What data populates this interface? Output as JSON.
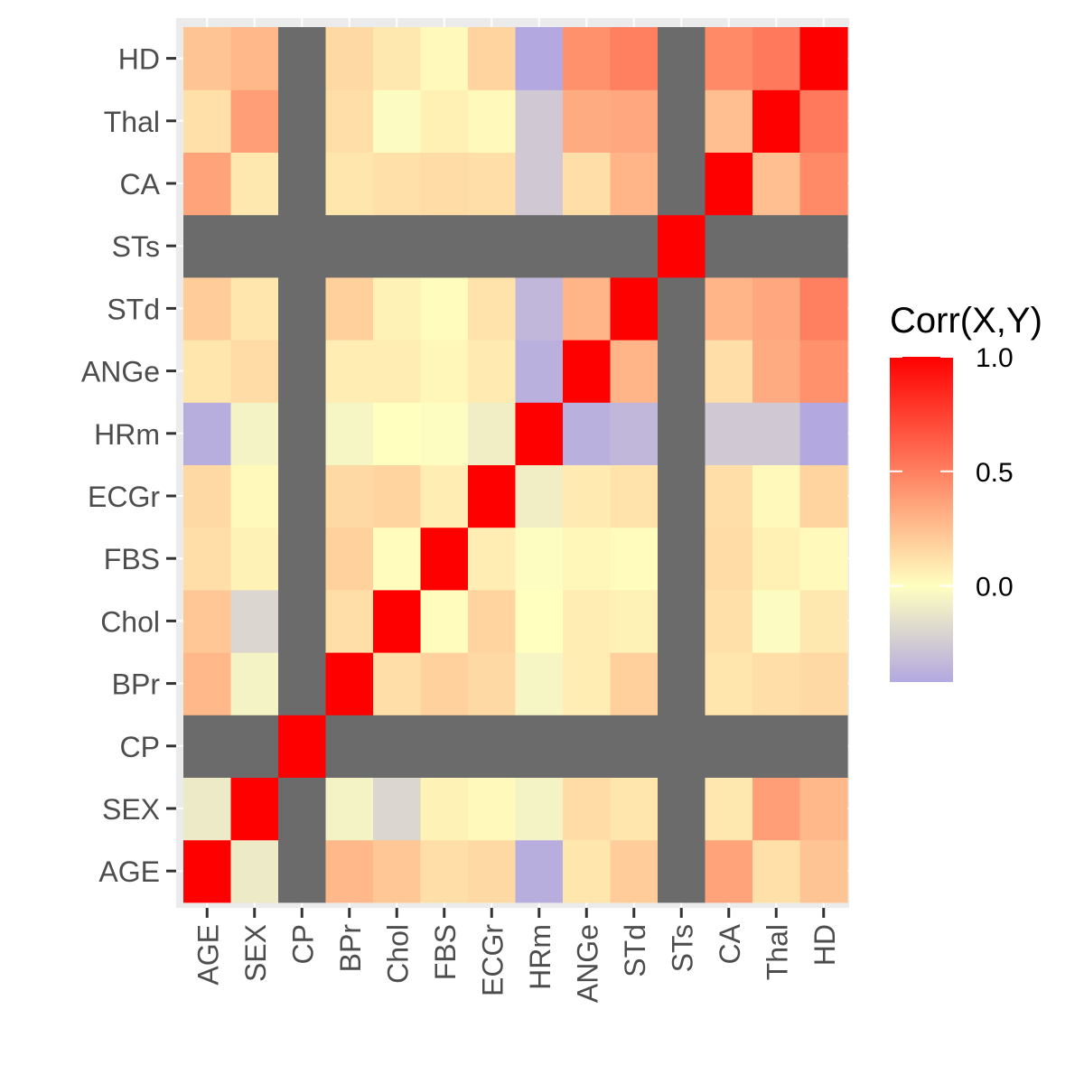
{
  "chart_data": {
    "type": "heatmap",
    "legend": {
      "title": "Corr(X,Y)",
      "ticks": [
        1.0,
        0.5,
        0.0
      ],
      "tick_labels": [
        "1.0",
        "0.5",
        "0.0"
      ],
      "range": [
        -0.42,
        1.0
      ],
      "placement": "right"
    },
    "x_labels": [
      "AGE",
      "SEX",
      "CP",
      "BPr",
      "Chol",
      "FBS",
      "ECGr",
      "HRm",
      "ANGe",
      "STd",
      "STs",
      "CA",
      "Thal",
      "HD"
    ],
    "y_labels": [
      "AGE",
      "SEX",
      "CP",
      "BPr",
      "Chol",
      "FBS",
      "ECGr",
      "HRm",
      "ANGe",
      "STd",
      "STs",
      "CA",
      "Thal",
      "HD"
    ],
    "missing_color": "#6b6b6b",
    "colors": {
      "low": "#b3a8e0",
      "mid": "#ffffc0",
      "high": "#ff0000",
      "panel": "#ebebeb"
    },
    "matrix": [
      [
        1.0,
        -0.1,
        null,
        0.28,
        0.22,
        0.13,
        0.15,
        -0.39,
        0.1,
        0.2,
        null,
        0.36,
        0.12,
        0.23
      ],
      [
        -0.1,
        1.0,
        null,
        -0.06,
        -0.2,
        0.05,
        0.02,
        -0.06,
        0.14,
        0.1,
        null,
        0.09,
        0.38,
        0.28
      ],
      [
        null,
        null,
        1.0,
        null,
        null,
        null,
        null,
        null,
        null,
        null,
        null,
        null,
        null,
        null
      ],
      [
        0.28,
        -0.06,
        null,
        1.0,
        0.13,
        0.18,
        0.15,
        -0.05,
        0.07,
        0.19,
        null,
        0.1,
        0.13,
        0.15
      ],
      [
        0.22,
        -0.2,
        null,
        0.13,
        1.0,
        0.01,
        0.17,
        0.0,
        0.07,
        0.05,
        null,
        0.12,
        -0.02,
        0.09
      ],
      [
        0.13,
        0.05,
        null,
        0.18,
        0.01,
        1.0,
        0.07,
        -0.01,
        0.03,
        0.01,
        null,
        0.14,
        0.06,
        0.02
      ],
      [
        0.15,
        0.02,
        null,
        0.15,
        0.17,
        0.07,
        1.0,
        -0.08,
        0.08,
        0.11,
        null,
        0.13,
        0.02,
        0.17
      ],
      [
        -0.39,
        -0.06,
        null,
        -0.05,
        0.0,
        -0.01,
        -0.08,
        1.0,
        -0.38,
        -0.35,
        null,
        -0.26,
        -0.26,
        -0.42
      ],
      [
        0.1,
        0.14,
        null,
        0.07,
        0.07,
        0.03,
        0.08,
        -0.38,
        1.0,
        0.29,
        null,
        0.13,
        0.33,
        0.43
      ],
      [
        0.2,
        0.1,
        null,
        0.19,
        0.05,
        0.01,
        0.11,
        -0.35,
        0.29,
        1.0,
        null,
        0.29,
        0.34,
        0.5
      ],
      [
        null,
        null,
        null,
        null,
        null,
        null,
        null,
        null,
        null,
        null,
        1.0,
        null,
        null,
        null
      ],
      [
        0.36,
        0.09,
        null,
        0.1,
        0.12,
        0.14,
        0.13,
        -0.26,
        0.13,
        0.29,
        null,
        1.0,
        0.25,
        0.46
      ],
      [
        0.12,
        0.38,
        null,
        0.13,
        -0.02,
        0.06,
        0.02,
        -0.26,
        0.33,
        0.34,
        null,
        0.25,
        1.0,
        0.52
      ],
      [
        0.23,
        0.28,
        null,
        0.15,
        0.09,
        0.02,
        0.17,
        -0.42,
        0.43,
        0.5,
        null,
        0.46,
        0.52,
        1.0
      ]
    ]
  }
}
